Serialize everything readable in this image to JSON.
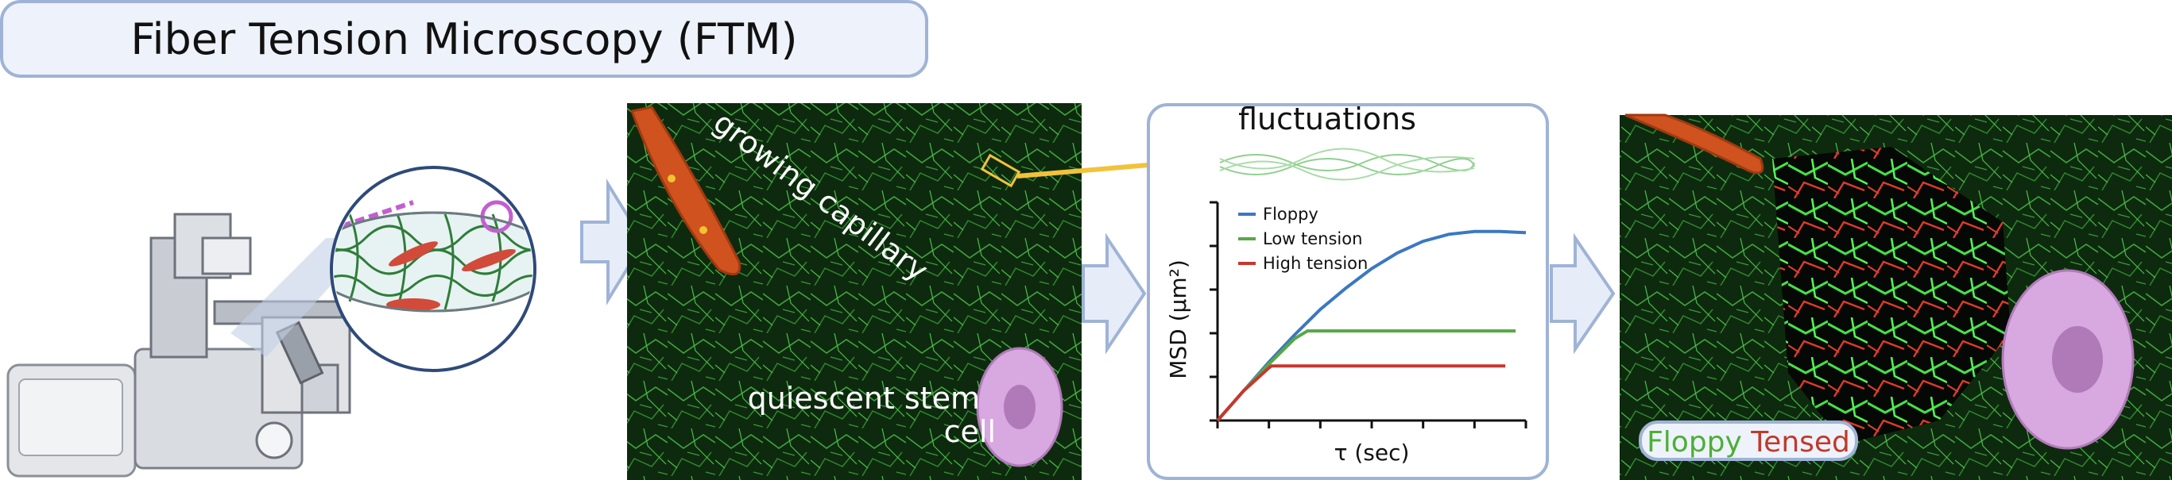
{
  "title": "Fiber Tension Microscopy (FTM)",
  "panel2": {
    "capillary_label": "growing capillary",
    "stem_label_line1": "quiescent stem",
    "stem_label_line2": "cell"
  },
  "panel3": {
    "heading": "fluctuations",
    "chart_data": {
      "type": "line",
      "title": "",
      "xlabel": "τ (sec)",
      "ylabel": "MSD (µm²)",
      "x_tick_count": 7,
      "y_tick_count": 6,
      "legend_position": "top-left",
      "series": [
        {
          "name": "Floppy",
          "color": "#3a78c2",
          "x": [
            0,
            0.5,
            1,
            1.5,
            2,
            2.5,
            3,
            3.5,
            4,
            4.5,
            5,
            5.5,
            6
          ],
          "y": [
            0,
            0.75,
            1.5,
            2.2,
            2.85,
            3.4,
            3.9,
            4.3,
            4.6,
            4.78,
            4.85,
            4.85,
            4.82
          ]
        },
        {
          "name": "Low tension",
          "color": "#58a845",
          "x": [
            0,
            0.5,
            1,
            1.5,
            1.75,
            2,
            3,
            4,
            5,
            5.8
          ],
          "y": [
            0,
            0.75,
            1.45,
            2.1,
            2.3,
            2.3,
            2.3,
            2.3,
            2.3,
            2.3
          ]
        },
        {
          "name": "High tension",
          "color": "#c7372f",
          "x": [
            0,
            0.5,
            1,
            1.05,
            2,
            3,
            4,
            5,
            5.6
          ],
          "y": [
            0,
            0.75,
            1.35,
            1.4,
            1.4,
            1.4,
            1.4,
            1.4,
            1.4
          ]
        }
      ],
      "xlim": [
        0,
        6
      ],
      "ylim": [
        0,
        5.6
      ]
    }
  },
  "panel4": {
    "legend_word1": "Floppy",
    "legend_word2": "Tensed",
    "word1_color": "#4caf35",
    "word2_color": "#c0392b"
  },
  "colors": {
    "arrow_fill": "#e6edf8",
    "arrow_stroke": "#9fb3d6",
    "fiber_green": "#2e8b2e",
    "cell_purple": "#d8a8e0",
    "nucleus_purple": "#b07ab8",
    "yellow_arrow": "#f2c23a"
  }
}
